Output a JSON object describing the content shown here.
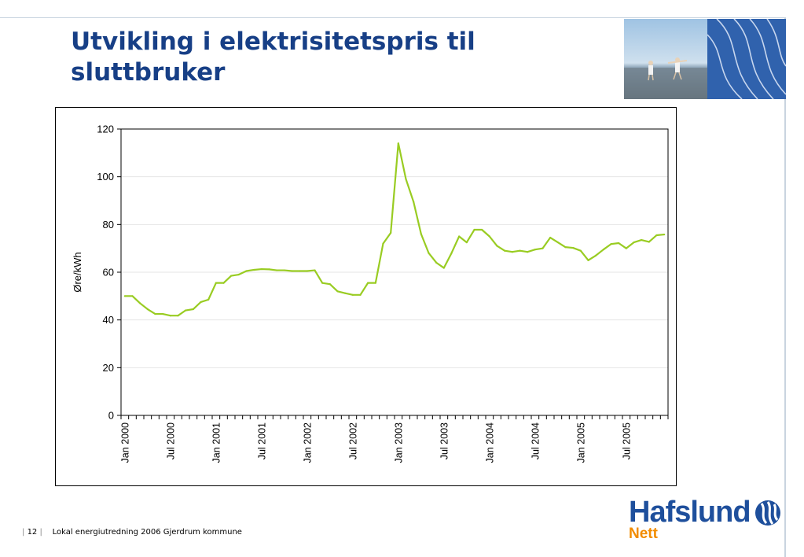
{
  "slide": {
    "title": "Utvikling i elektrisitetspris til sluttbruker",
    "page_number": "12",
    "footer_text": "Lokal energiutredning 2006 Gjerdrum kommune"
  },
  "logo": {
    "brand": "Hafslund",
    "sub": "Nett"
  },
  "colors": {
    "title": "#173f86",
    "series": "#99cc22",
    "brand_blue": "#1e4f9c",
    "brand_orange": "#f28c00"
  },
  "chart_data": {
    "type": "line",
    "title": "",
    "xlabel": "",
    "ylabel": "Øre/kWh",
    "ylim": [
      0,
      120
    ],
    "yticks": [
      0,
      20,
      40,
      60,
      80,
      100,
      120
    ],
    "xtick_labels": [
      "Jan 2000",
      "Jul 2000",
      "Jan 2001",
      "Jul 2001",
      "Jan 2002",
      "Jul 2002",
      "Jan 2003",
      "Jul 2003",
      "Jan 2004",
      "Jul 2004",
      "Jan 2005",
      "Jul 2005"
    ],
    "grid": true,
    "legend": "none",
    "x_start": "Jan 2000",
    "x_end": "Dec 2005",
    "series": [
      {
        "color": "#99cc22",
        "values": [
          50,
          50,
          47,
          44.5,
          42.5,
          42.5,
          41.8,
          41.8,
          44,
          44.5,
          47.5,
          48.5,
          55.5,
          55.5,
          58.5,
          59,
          60.5,
          61,
          61.3,
          61.2,
          60.8,
          60.8,
          60.5,
          60.5,
          60.5,
          60.8,
          55.5,
          55,
          52,
          51.2,
          50.5,
          50.5,
          55.5,
          55.5,
          72,
          76.5,
          114,
          99,
          89.5,
          76,
          68,
          64,
          61.8,
          68,
          75,
          72.5,
          77.8,
          77.8,
          75,
          71,
          69,
          68.5,
          69,
          68.5,
          69.5,
          70,
          74.5,
          72.5,
          70.5,
          70.2,
          69,
          65,
          67,
          69.5,
          71.8,
          72.2,
          70,
          72.5,
          73.5,
          72.7,
          75.5,
          75.8
        ]
      }
    ]
  }
}
